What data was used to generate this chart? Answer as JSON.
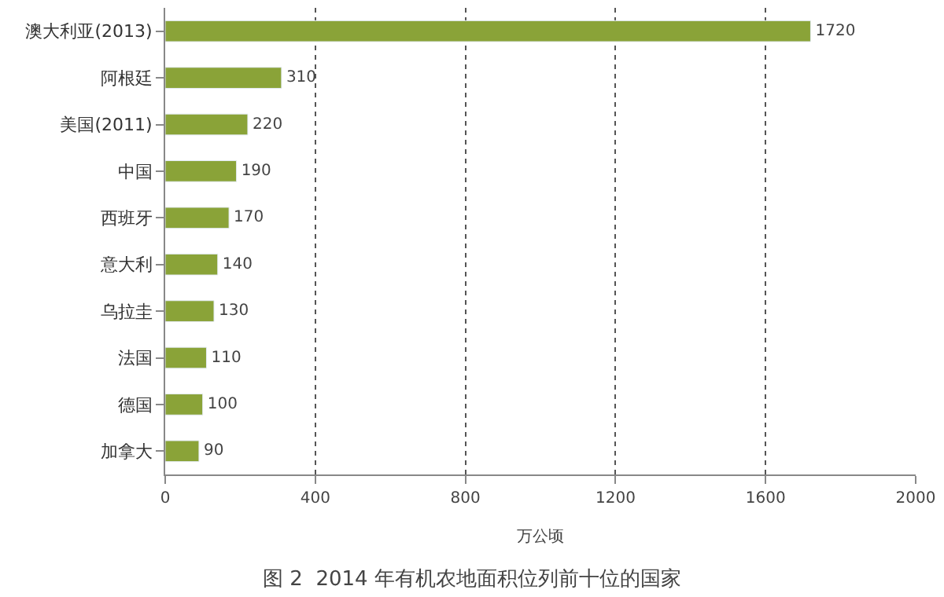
{
  "chart_data": {
    "type": "bar",
    "orientation": "horizontal",
    "title": "图 2  2014 年有机农地面积位列前十位的国家",
    "xlabel": "万公顷",
    "categories": [
      "澳大利亚(2013)",
      "阿根廷",
      "美国(2011)",
      "中国",
      "西班牙",
      "意大利",
      "乌拉圭",
      "法国",
      "德国",
      "加拿大"
    ],
    "values": [
      1720,
      310,
      220,
      190,
      170,
      140,
      130,
      110,
      100,
      90
    ],
    "color": "#8aa338",
    "xlim": [
      0,
      2000
    ],
    "xticks": [
      0,
      400,
      800,
      1200,
      1600,
      2000
    ],
    "grid": "x",
    "data_labels": true
  }
}
